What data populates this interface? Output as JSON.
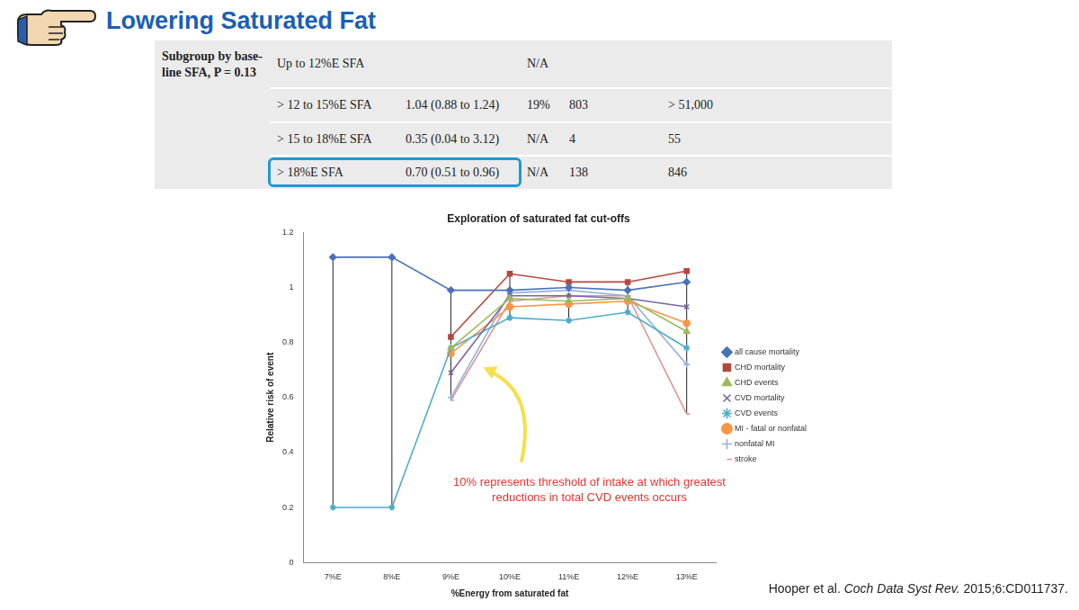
{
  "slide": {
    "title": "Lowering Saturated Fat",
    "citation": {
      "authors": "Hooper et al.",
      "journal": "Coch Data Syst Rev.",
      "reference": "2015;6:CD011737."
    }
  },
  "table": {
    "rows": [
      {
        "cells": [
          "Subgroup by base-line SFA, P = 0.13",
          "Up to 12%E SFA",
          null,
          "N/A",
          null,
          null
        ]
      },
      {
        "cells": [
          null,
          "> 12 to 15%E SFA",
          "1.04 (0.88 to 1.24)",
          "19%",
          "803",
          "> 51,000"
        ]
      },
      {
        "cells": [
          null,
          "> 15 to 18%E SFA",
          "0.35 (0.04 to 3.12)",
          "N/A",
          "4",
          "55"
        ]
      },
      {
        "cells": [
          null,
          "> 18%E SFA",
          "0.70 (0.51 to 0.96)",
          "N/A",
          "138",
          "846"
        ],
        "highlight": true
      }
    ]
  },
  "chart_data": {
    "type": "line",
    "title": "Exploration of saturated fat cut-offs",
    "x_label": "%Energy from saturated fat",
    "y_label": "Relative risk of event",
    "categories": [
      "7%E",
      "8%E",
      "9%E",
      "10%E",
      "11%E",
      "12%E",
      "13%E"
    ],
    "series": [
      {
        "name": "all cause mortality",
        "color": "#4a72b8",
        "marker": "diamond",
        "values": [
          1.11,
          1.11,
          0.99,
          0.99,
          1.0,
          0.99,
          1.02
        ]
      },
      {
        "name": "CHD mortality",
        "color": "#b5473f",
        "marker": "square",
        "values": [
          null,
          null,
          0.82,
          1.05,
          1.02,
          1.02,
          1.06
        ]
      },
      {
        "name": "CHD events",
        "color": "#9bbb59",
        "marker": "triangle",
        "values": [
          null,
          null,
          0.78,
          0.96,
          0.95,
          0.96,
          0.84
        ]
      },
      {
        "name": "CVD mortality",
        "color": "#7e63a3",
        "marker": "x",
        "values": [
          null,
          null,
          0.69,
          0.97,
          0.97,
          0.96,
          0.93
        ]
      },
      {
        "name": "CVD events",
        "color": "#4bacc6",
        "marker": "star",
        "values": [
          0.2,
          0.2,
          0.78,
          0.89,
          0.88,
          0.91,
          0.78
        ]
      },
      {
        "name": "MI - fatal or nonfatal",
        "color": "#f79646",
        "marker": "circle",
        "values": [
          null,
          null,
          0.76,
          0.93,
          0.94,
          0.95,
          0.87
        ]
      },
      {
        "name": "nonfatal MI",
        "color": "#95b3d7",
        "marker": "plus",
        "values": [
          null,
          null,
          0.6,
          0.98,
          0.99,
          0.97,
          0.72
        ]
      },
      {
        "name": "stroke",
        "color": "#d99694",
        "marker": "dash",
        "values": [
          null,
          null,
          0.59,
          0.95,
          0.97,
          0.97,
          0.54
        ]
      }
    ],
    "ylim": [
      0,
      1.2
    ],
    "yticks": [
      0,
      0.2,
      0.4,
      0.6,
      0.8,
      1,
      1.2
    ],
    "grid": false,
    "legend": "right",
    "annotations": [
      {
        "text": "10% represents threshold of intake at which greatest reductions in total CVD events occurs"
      }
    ]
  }
}
